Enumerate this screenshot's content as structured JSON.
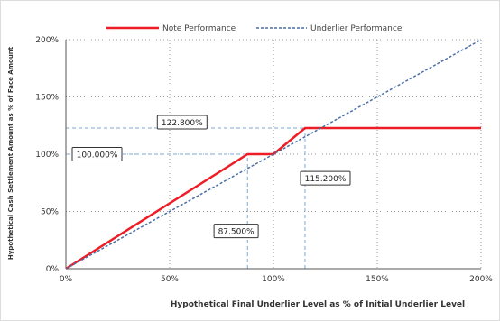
{
  "chart_data": {
    "type": "line",
    "xlabel": "Hypothetical Final Underlier Level as % of Initial Underlier Level",
    "ylabel": "Hypothetical Cash Settlement Amount as % of Face Amount",
    "xlim": [
      0,
      200
    ],
    "ylim": [
      0,
      200
    ],
    "x_ticks": [
      "0%",
      "50%",
      "100%",
      "150%",
      "200%"
    ],
    "y_ticks": [
      "0%",
      "50%",
      "100%",
      "150%",
      "200%"
    ],
    "grid": "dotted",
    "legend_position": "top",
    "series": [
      {
        "name": "Note Performance",
        "color": "#ee1c25",
        "style": "solid",
        "points": [
          [
            0,
            0
          ],
          [
            87.5,
            100
          ],
          [
            100,
            100
          ],
          [
            115.2,
            122.8
          ],
          [
            200,
            122.8
          ]
        ]
      },
      {
        "name": "Underlier Performance",
        "color": "#4a6fa5",
        "style": "dashed",
        "points": [
          [
            0,
            0
          ],
          [
            200,
            200
          ]
        ]
      }
    ],
    "annotations": [
      {
        "text": "122.800%",
        "anchor": [
          115.2,
          122.8
        ],
        "box_at": [
          56,
          128
        ]
      },
      {
        "text": "100.000%",
        "anchor": [
          87.5,
          100
        ],
        "box_at": [
          15,
          100
        ]
      },
      {
        "text": "115.200%",
        "anchor": [
          115.2,
          122.8
        ],
        "box_at": [
          125,
          79
        ]
      },
      {
        "text": "87.500%",
        "anchor": [
          87.5,
          100
        ],
        "box_at": [
          82,
          33
        ]
      }
    ],
    "guides": [
      {
        "from": [
          0,
          122.8
        ],
        "to": [
          115.2,
          122.8
        ]
      },
      {
        "from": [
          0,
          100
        ],
        "to": [
          87.5,
          100
        ]
      },
      {
        "from": [
          87.5,
          0
        ],
        "to": [
          87.5,
          100
        ]
      },
      {
        "from": [
          115.2,
          0
        ],
        "to": [
          115.2,
          122.8
        ]
      }
    ]
  }
}
